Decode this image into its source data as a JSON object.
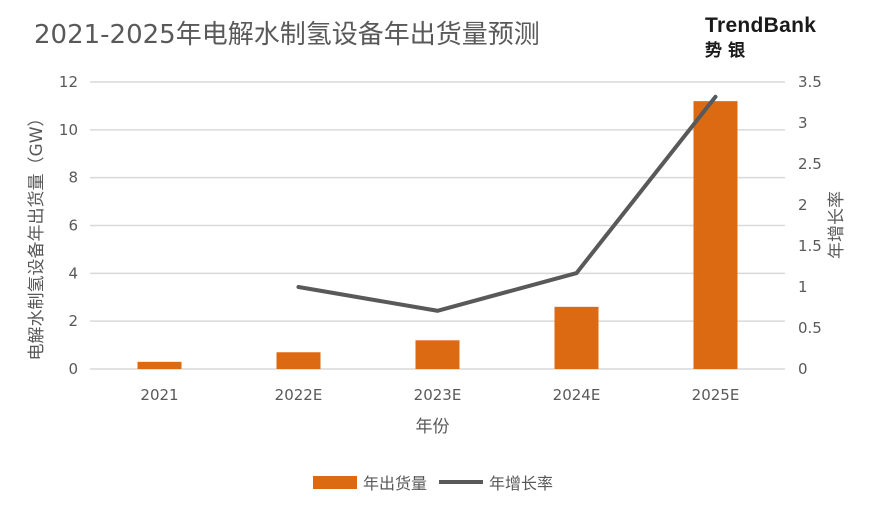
{
  "chart_data": {
    "type": "bar+line",
    "title": "2021-2025年电解水制氢设备年出货量预测",
    "categories": [
      "2021",
      "2022E",
      "2023E",
      "2024E",
      "2025E"
    ],
    "series": [
      {
        "name": "年出货量",
        "type": "bar",
        "axis": "left",
        "values": [
          0.3,
          0.7,
          1.2,
          2.6,
          11.2
        ],
        "color": "#db6a13"
      },
      {
        "name": "年增长率",
        "type": "line",
        "axis": "right",
        "values": [
          null,
          1.0,
          0.71,
          1.17,
          3.32
        ],
        "color": "#595959"
      }
    ],
    "xlabel": "年份",
    "ylabel": "电解水制氢设备年出货量（GW）",
    "y2label": "年增长率",
    "ylim": [
      0,
      12
    ],
    "y_ticks": [
      "0",
      "2",
      "4",
      "6",
      "8",
      "10",
      "12"
    ],
    "y2lim": [
      0,
      3.5
    ],
    "y2_ticks": [
      "0",
      "0.5",
      "1",
      "1.5",
      "2",
      "2.5",
      "3",
      "3.5"
    ],
    "grid": true,
    "legend": "bottom"
  },
  "logo": {
    "en": "TrendBank",
    "cn": "势银"
  }
}
